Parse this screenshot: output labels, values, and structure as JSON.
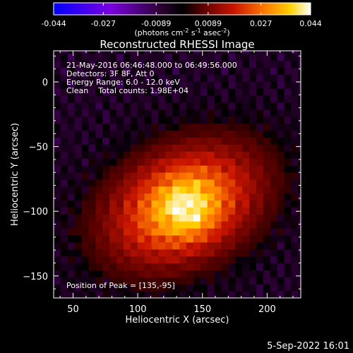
{
  "chart_data": {
    "type": "heatmap",
    "title": "Reconstructed RHESSI Image",
    "xlabel": "Heliocentric X (arcsec)",
    "ylabel": "Heliocentric Y (arcsec)",
    "xlim": [
      35,
      226
    ],
    "ylim": [
      -167,
      24
    ],
    "x_ticks": [
      50,
      100,
      150,
      200
    ],
    "y_ticks": [
      0,
      -50,
      -100,
      -150
    ],
    "colorbar": {
      "min": -0.044,
      "max": 0.044,
      "ticks": [
        "-0.044",
        "-0.027",
        "-0.0089",
        "0.0089",
        "0.027",
        "0.044"
      ],
      "units_label": "(photons cm",
      "units_exp1": "-2",
      "units_mid": " s",
      "units_exp2": "-1",
      "units_end": " asec",
      "units_exp3": "-2",
      "units_close": ")",
      "colors": [
        "#0000ff",
        "#6a00d8",
        "#2a0030",
        "#000000",
        "#5a0000",
        "#c81400",
        "#ff7800",
        "#ffd000",
        "#ffffff"
      ]
    },
    "annotations": [
      "21-May-2016 06:46:48.000 to 06:49:56.000",
      "Detectors: 3F 8F, Att 0",
      "Energy Range: 6.0 - 12.0 keV",
      "Clean    Total counts: 1.98E+04"
    ],
    "peak_label": "Position of Peak = [135,-95]",
    "peak": [
      135,
      -95
    ],
    "background_level": 0.0
  },
  "footer_date": "5-Sep-2022 16:01"
}
